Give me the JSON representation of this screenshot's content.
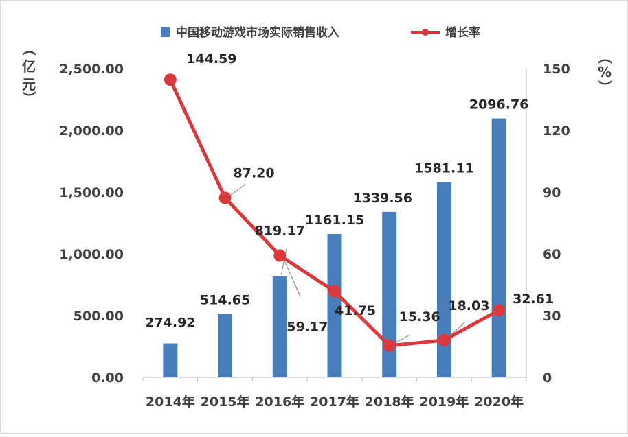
{
  "chart_data": {
    "type": "bar+line",
    "categories": [
      "2014年",
      "2015年",
      "2016年",
      "2017年",
      "2018年",
      "2019年",
      "2020年"
    ],
    "series": [
      {
        "name": "中国移动游戏市场实际销售收入",
        "type": "bar",
        "axis": "left",
        "values": [
          274.92,
          514.65,
          819.17,
          1161.15,
          1339.56,
          1581.11,
          2096.76
        ],
        "labels": [
          "274.92",
          "514.65",
          "819.17",
          "1161.15",
          "1339.56",
          "1581.11",
          "2096.76"
        ],
        "color": "#4a7ebb"
      },
      {
        "name": "增长率",
        "type": "line",
        "axis": "right",
        "values": [
          144.59,
          87.2,
          59.17,
          41.75,
          15.36,
          18.03,
          32.61
        ],
        "labels": [
          "144.59",
          "87.20",
          "59.17",
          "41.75",
          "15.36",
          "18.03",
          "32.61"
        ],
        "color": "#d9393a"
      }
    ],
    "y_left": {
      "label_chars": [
        "（",
        "亿",
        "元",
        "）"
      ],
      "ylim": [
        0,
        2500
      ],
      "ticks": [
        0,
        500,
        1000,
        1500,
        2000,
        2500
      ],
      "tick_labels": [
        "0.00",
        "500.00",
        "1,000.00",
        "1,500.00",
        "2,000.00",
        "2,500.00"
      ]
    },
    "y_right": {
      "label_chars": [
        "（",
        "%",
        "）"
      ],
      "ylim": [
        0,
        150
      ],
      "ticks": [
        0,
        30,
        60,
        90,
        120,
        150
      ],
      "tick_labels": [
        "0",
        "30",
        "60",
        "90",
        "120",
        "150"
      ]
    },
    "grid": false,
    "legend_position": "top-center"
  }
}
